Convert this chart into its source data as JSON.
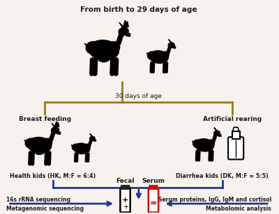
{
  "bg_color": "#f7f2ed",
  "line_color_gold": "#9a7b10",
  "line_color_blue": "#1b3a8c",
  "text_color": "#1a1a1a",
  "title_text": "From birth to 29 days of age",
  "split_text": "30 days of age",
  "left_label": "Breast feeding",
  "right_label": "Artificial rearing",
  "left_group": "Health kids (HK, M:F = 6:4)",
  "right_group": "Diarrhea kids (DK, M:F = 5:5)",
  "fecal_label": "Fecal",
  "serum_label": "Serum",
  "left_outputs": [
    "16s rRNA sequencing",
    "Metagenomic sequencing"
  ],
  "right_outputs": [
    "Serum proteins, IgG, IgM and cortisol",
    "Metabolomic analysis"
  ]
}
